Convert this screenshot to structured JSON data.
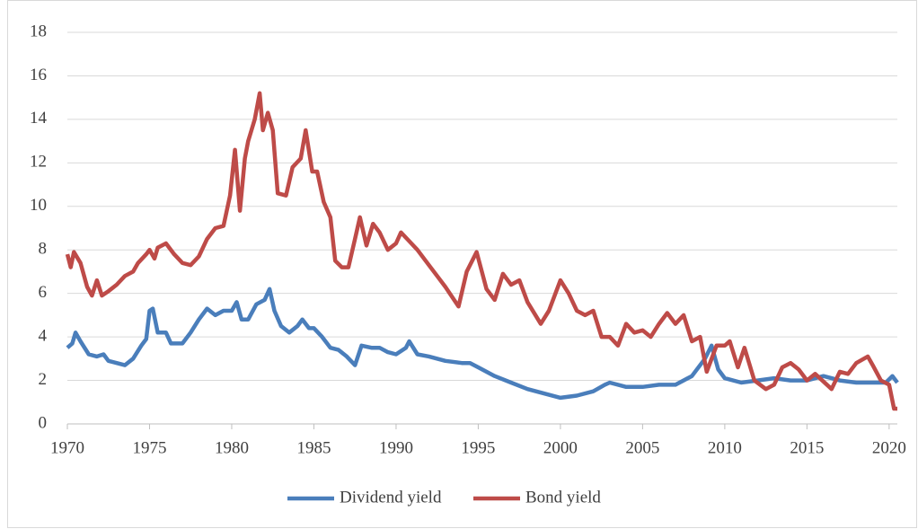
{
  "chart_data": {
    "type": "line",
    "xlim": [
      1970,
      2020.5
    ],
    "xticks": [
      1970,
      1975,
      1980,
      1985,
      1990,
      1995,
      2000,
      2005,
      2010,
      2015,
      2020
    ],
    "ylim": [
      0,
      18
    ],
    "yticks": [
      0,
      2,
      4,
      6,
      8,
      10,
      12,
      14,
      16,
      18
    ],
    "grid": true,
    "legend": "bottom",
    "series": [
      {
        "name": "Dividend yield",
        "color": "#4a7ebb",
        "x": [
          1970,
          1970.3,
          1970.5,
          1970.8,
          1971.3,
          1971.8,
          1972.2,
          1972.5,
          1973,
          1973.5,
          1974,
          1974.5,
          1974.8,
          1975,
          1975.2,
          1975.5,
          1976,
          1976.3,
          1977,
          1977.5,
          1978,
          1978.5,
          1979,
          1979.5,
          1980,
          1980.3,
          1980.6,
          1981,
          1981.5,
          1982,
          1982.3,
          1982.6,
          1983,
          1983.5,
          1984,
          1984.3,
          1984.7,
          1985,
          1985.5,
          1986,
          1986.5,
          1987,
          1987.5,
          1987.9,
          1988.5,
          1989,
          1989.5,
          1990,
          1990.6,
          1990.8,
          1991.3,
          1992,
          1993,
          1994,
          1994.5,
          1995,
          1996,
          1997,
          1998,
          1999,
          2000,
          2001,
          2002,
          2002.7,
          2003,
          2004,
          2005,
          2006,
          2007,
          2008,
          2008.8,
          2009.2,
          2009.6,
          2010,
          2011,
          2012,
          2013,
          2014,
          2015,
          2016,
          2017,
          2018,
          2019,
          2019.8,
          2020.2,
          2020.5
        ],
        "values": [
          3.5,
          3.7,
          4.2,
          3.8,
          3.2,
          3.1,
          3.2,
          2.9,
          2.8,
          2.7,
          3.0,
          3.6,
          3.9,
          5.2,
          5.3,
          4.2,
          4.2,
          3.7,
          3.7,
          4.2,
          4.8,
          5.3,
          5.0,
          5.2,
          5.2,
          5.6,
          4.8,
          4.8,
          5.5,
          5.7,
          6.2,
          5.2,
          4.5,
          4.2,
          4.5,
          4.8,
          4.4,
          4.4,
          4.0,
          3.5,
          3.4,
          3.1,
          2.7,
          3.6,
          3.5,
          3.5,
          3.3,
          3.2,
          3.5,
          3.8,
          3.2,
          3.1,
          2.9,
          2.8,
          2.8,
          2.6,
          2.2,
          1.9,
          1.6,
          1.4,
          1.2,
          1.3,
          1.5,
          1.8,
          1.9,
          1.7,
          1.7,
          1.8,
          1.8,
          2.2,
          3.0,
          3.6,
          2.5,
          2.1,
          1.9,
          2.0,
          2.1,
          2.0,
          2.0,
          2.2,
          2.0,
          1.9,
          1.9,
          1.9,
          2.2,
          1.9
        ]
      },
      {
        "name": "Bond yield",
        "color": "#be4b48",
        "x": [
          1970,
          1970.2,
          1970.4,
          1970.8,
          1971.2,
          1971.5,
          1971.8,
          1972.1,
          1972.5,
          1973,
          1973.5,
          1974,
          1974.3,
          1974.8,
          1975,
          1975.3,
          1975.5,
          1976,
          1976.5,
          1977,
          1977.5,
          1978,
          1978.5,
          1979,
          1979.5,
          1979.9,
          1980.2,
          1980.5,
          1980.8,
          1981,
          1981.4,
          1981.7,
          1981.9,
          1982.2,
          1982.5,
          1982.8,
          1983.3,
          1983.7,
          1984.2,
          1984.5,
          1984.9,
          1985.2,
          1985.6,
          1986,
          1986.3,
          1986.7,
          1987.1,
          1987.5,
          1987.8,
          1988.2,
          1988.6,
          1989,
          1989.5,
          1990,
          1990.3,
          1990.8,
          1991.3,
          1992,
          1992.5,
          1993,
          1993.8,
          1994.3,
          1994.9,
          1995.5,
          1996,
          1996.5,
          1997,
          1997.5,
          1998,
          1998.8,
          1999.3,
          2000,
          2000.5,
          2001,
          2001.5,
          2002,
          2002.5,
          2003,
          2003.5,
          2004,
          2004.5,
          2005,
          2005.5,
          2006,
          2006.5,
          2007,
          2007.5,
          2008,
          2008.5,
          2008.9,
          2009.5,
          2010,
          2010.3,
          2010.8,
          2011.2,
          2011.8,
          2012.5,
          2013,
          2013.5,
          2014,
          2014.5,
          2015,
          2015.5,
          2016.5,
          2017,
          2017.5,
          2018,
          2018.7,
          2019,
          2019.5,
          2020,
          2020.3,
          2020.5
        ],
        "values": [
          7.8,
          7.2,
          7.9,
          7.4,
          6.3,
          5.9,
          6.6,
          5.9,
          6.1,
          6.4,
          6.8,
          7.0,
          7.4,
          7.8,
          8.0,
          7.6,
          8.1,
          8.3,
          7.8,
          7.4,
          7.3,
          7.7,
          8.5,
          9.0,
          9.1,
          10.5,
          12.6,
          9.8,
          12.2,
          13.0,
          14.0,
          15.2,
          13.5,
          14.3,
          13.5,
          10.6,
          10.5,
          11.8,
          12.2,
          13.5,
          11.6,
          11.6,
          10.2,
          9.5,
          7.5,
          7.2,
          7.2,
          8.5,
          9.5,
          8.2,
          9.2,
          8.8,
          8.0,
          8.3,
          8.8,
          8.4,
          8.0,
          7.3,
          6.8,
          6.3,
          5.4,
          7.0,
          7.9,
          6.2,
          5.7,
          6.9,
          6.4,
          6.6,
          5.6,
          4.6,
          5.2,
          6.6,
          6.0,
          5.2,
          5.0,
          5.2,
          4.0,
          4.0,
          3.6,
          4.6,
          4.2,
          4.3,
          4.0,
          4.6,
          5.1,
          4.6,
          5.0,
          3.8,
          4.0,
          2.4,
          3.6,
          3.6,
          3.8,
          2.6,
          3.5,
          2.0,
          1.6,
          1.8,
          2.6,
          2.8,
          2.5,
          2.0,
          2.3,
          1.6,
          2.4,
          2.3,
          2.8,
          3.1,
          2.7,
          2.0,
          1.8,
          0.7,
          0.7
        ]
      }
    ]
  }
}
